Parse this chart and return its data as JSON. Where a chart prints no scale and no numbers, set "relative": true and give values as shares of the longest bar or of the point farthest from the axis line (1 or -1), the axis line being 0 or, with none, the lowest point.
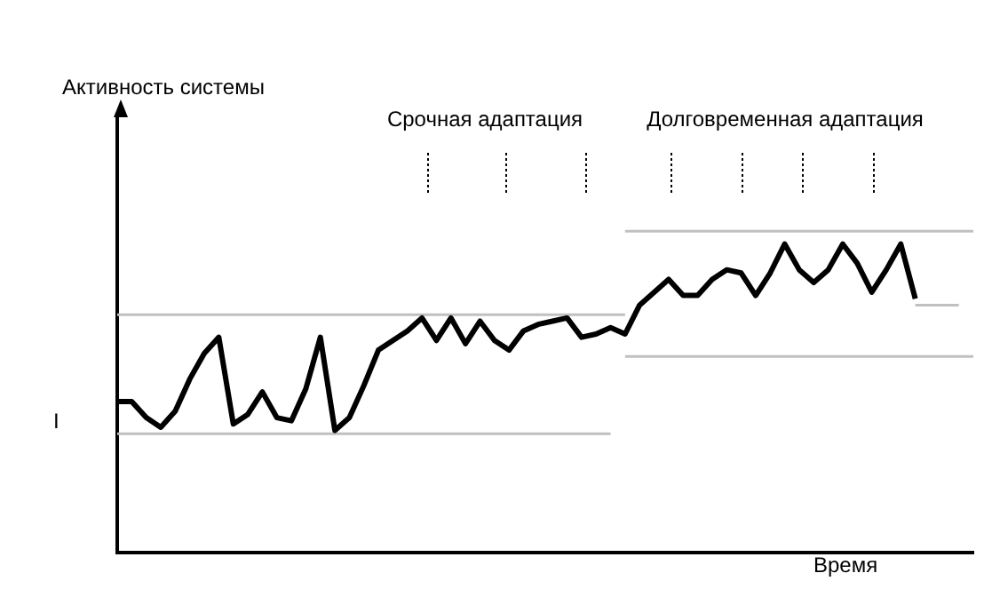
{
  "chart_data": {
    "type": "line",
    "relative": true,
    "xlabel": "Время",
    "annotations": [
      "I",
      "Срочная адаптация",
      "Долговременная адаптация",
      "Активность системы"
    ],
    "categories": [
      null,
      null,
      null,
      null,
      null,
      null,
      null,
      null,
      null,
      null,
      null,
      null,
      null,
      null,
      null,
      null,
      null,
      null,
      null,
      null,
      null,
      null,
      null,
      null,
      null,
      null,
      null,
      null,
      null,
      null,
      null,
      null,
      null,
      null,
      null,
      null,
      null,
      null,
      null,
      null,
      null,
      null,
      null,
      null,
      null,
      null,
      null,
      null,
      null,
      null,
      null,
      null,
      null,
      null,
      null,
      null,
      null,
      null,
      null,
      null
    ],
    "series": [
      {
        "color": "#000000",
        "values": [
          0.47,
          0.47,
          0.42,
          0.39,
          0.44,
          0.54,
          0.62,
          0.67,
          0.4,
          0.43,
          0.5,
          0.42,
          0.41,
          0.51,
          0.67,
          0.38,
          0.42,
          0.52,
          0.63,
          0.66,
          0.69,
          0.73,
          0.66,
          0.73,
          0.65,
          0.72,
          0.66,
          0.63,
          0.69,
          0.71,
          0.72,
          0.73,
          0.67,
          0.68,
          0.7,
          0.68,
          0.77,
          0.81,
          0.85,
          0.8,
          0.8,
          0.85,
          0.88,
          0.87,
          0.8,
          0.87,
          0.96,
          0.88,
          0.84,
          0.88,
          0.96,
          0.9,
          0.81,
          0.88,
          0.96,
          0.79,
          null,
          null,
          null,
          null
        ]
      },
      {
        "color": "#c0c0c0",
        "values": [
          0.74,
          0.74,
          0.74,
          0.74,
          0.74,
          0.74,
          0.74,
          0.74,
          0.74,
          0.74,
          0.74,
          0.74,
          0.74,
          0.74,
          0.74,
          0.74,
          0.74,
          0.74,
          0.74,
          0.74,
          0.74,
          0.74,
          0.74,
          0.74,
          0.74,
          0.74,
          0.74,
          0.74,
          0.74,
          0.74,
          0.74,
          0.74,
          0.74,
          0.74,
          0.74,
          0.74,
          null,
          null,
          null,
          null,
          null,
          null,
          null,
          null,
          null,
          null,
          null,
          null,
          null,
          null,
          null,
          null,
          null,
          null,
          null,
          null,
          null,
          null,
          null,
          null
        ]
      },
      {
        "color": "#c0c0c0",
        "values": [
          null,
          null,
          null,
          null,
          null,
          null,
          null,
          null,
          null,
          null,
          null,
          null,
          null,
          null,
          null,
          null,
          null,
          null,
          null,
          null,
          null,
          null,
          null,
          null,
          null,
          null,
          null,
          null,
          null,
          null,
          null,
          null,
          null,
          null,
          null,
          null,
          null,
          null,
          null,
          null,
          null,
          null,
          null,
          null,
          null,
          null,
          null,
          null,
          null,
          null,
          null,
          null,
          null,
          null,
          null,
          0.77,
          0.77,
          0.77,
          0.77,
          null
        ]
      },
      {
        "color": "#c0c0c0",
        "values": [
          0.37,
          0.37,
          0.37,
          0.37,
          0.37,
          0.37,
          0.37,
          0.37,
          0.37,
          0.37,
          0.37,
          0.37,
          0.37,
          0.37,
          0.37,
          0.37,
          0.37,
          0.37,
          0.37,
          0.37,
          0.37,
          0.37,
          0.37,
          0.37,
          0.37,
          0.37,
          0.37,
          0.37,
          0.37,
          0.37,
          0.37,
          0.37,
          0.37,
          0.37,
          0.37,
          null,
          null,
          null,
          null,
          null,
          null,
          null,
          null,
          null,
          null,
          null,
          null,
          null,
          null,
          null,
          null,
          null,
          null,
          null,
          null,
          null,
          null,
          null,
          null,
          null
        ]
      },
      {
        "color": "#c0c0c0",
        "values": [
          null,
          null,
          null,
          null,
          null,
          null,
          null,
          null,
          null,
          null,
          null,
          null,
          null,
          null,
          null,
          null,
          null,
          null,
          null,
          null,
          null,
          null,
          null,
          null,
          null,
          null,
          null,
          null,
          null,
          null,
          null,
          null,
          null,
          null,
          null,
          1,
          1,
          1,
          1,
          1,
          1,
          1,
          1,
          1,
          1,
          1,
          1,
          1,
          1,
          1,
          1,
          1,
          1,
          1,
          1,
          1,
          1,
          1,
          1,
          1
        ]
      },
      {
        "color": "#c0c0c0",
        "values": [
          null,
          null,
          null,
          null,
          null,
          null,
          null,
          null,
          null,
          null,
          null,
          null,
          null,
          null,
          null,
          null,
          null,
          null,
          null,
          null,
          null,
          null,
          null,
          null,
          null,
          null,
          null,
          null,
          null,
          null,
          null,
          null,
          null,
          null,
          null,
          0.61,
          0.61,
          0.61,
          0.61,
          0.61,
          0.61,
          0.61,
          0.61,
          0.61,
          0.61,
          0.61,
          0.61,
          0.61,
          0.61,
          0.61,
          0.61,
          0.61,
          0.61,
          0.61,
          0.61,
          0.61,
          0.61,
          0.61,
          0.61,
          0.61
        ]
      }
    ],
    "legend": false
  }
}
